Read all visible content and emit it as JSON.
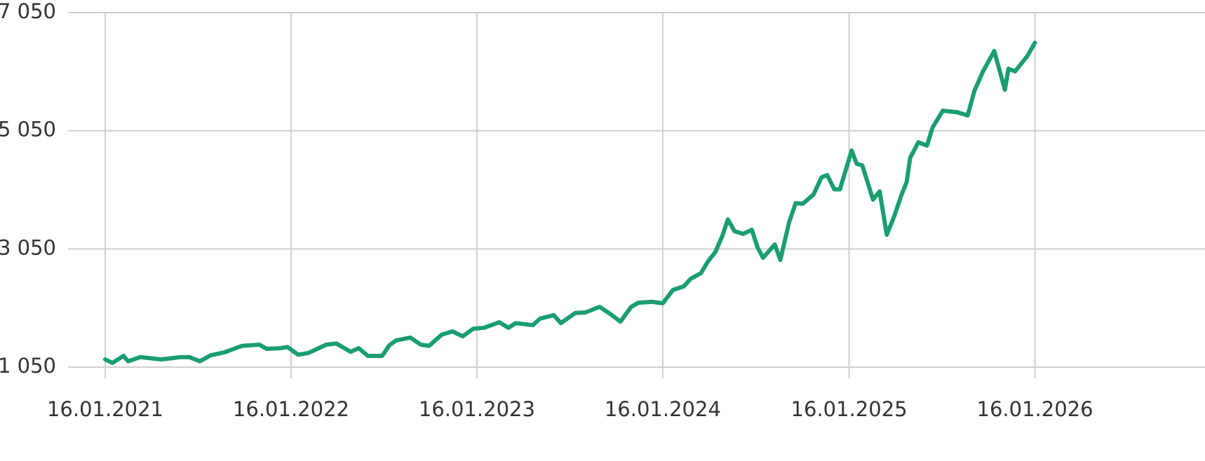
{
  "chart_data": {
    "type": "line",
    "x": [
      "2021-01-16",
      "2021-01-30",
      "2021-02-21",
      "2021-03-02",
      "2021-03-26",
      "2021-05-06",
      "2021-06-14",
      "2021-06-30",
      "2021-07-21",
      "2021-08-11",
      "2021-09-07",
      "2021-10-12",
      "2021-11-15",
      "2021-11-29",
      "2021-12-26",
      "2022-01-09",
      "2022-01-30",
      "2022-02-19",
      "2022-03-26",
      "2022-04-15",
      "2022-05-13",
      "2022-05-29",
      "2022-06-16",
      "2022-07-14",
      "2022-07-28",
      "2022-08-10",
      "2022-09-07",
      "2022-09-28",
      "2022-10-14",
      "2022-11-08",
      "2022-11-29",
      "2022-12-19",
      "2023-01-09",
      "2023-01-30",
      "2023-03-01",
      "2023-03-19",
      "2023-04-02",
      "2023-05-06",
      "2023-05-20",
      "2023-06-16",
      "2023-06-30",
      "2023-07-28",
      "2023-08-17",
      "2023-09-14",
      "2023-10-05",
      "2023-10-25",
      "2023-11-15",
      "2023-11-29",
      "2023-12-26",
      "2024-01-16",
      "2024-02-05",
      "2024-02-26",
      "2024-03-11",
      "2024-03-31",
      "2024-04-14",
      "2024-04-28",
      "2024-05-12",
      "2024-05-23",
      "2024-06-05",
      "2024-06-22",
      "2024-07-09",
      "2024-07-20",
      "2024-07-31",
      "2024-08-23",
      "2024-09-03",
      "2024-09-20",
      "2024-10-03",
      "2024-10-17",
      "2024-11-07",
      "2024-11-23",
      "2024-12-04",
      "2024-12-18",
      "2024-12-29",
      "2025-01-21",
      "2025-01-31",
      "2025-02-11",
      "2025-03-04",
      "2025-03-17",
      "2025-03-31",
      "2025-04-14",
      "2025-04-28",
      "2025-05-09",
      "2025-05-16",
      "2025-06-01",
      "2025-06-18",
      "2025-06-29",
      "2025-07-19",
      "2025-08-16",
      "2025-09-06",
      "2025-09-19",
      "2025-10-06",
      "2025-10-28",
      "2025-11-18",
      "2025-11-25",
      "2025-12-08",
      "2026-01-01",
      "2026-01-16"
    ],
    "series": [
      {
        "color": "#1a9e6e",
        "values": [
          1180,
          1120,
          1240,
          1150,
          1220,
          1180,
          1220,
          1220,
          1150,
          1250,
          1300,
          1410,
          1430,
          1360,
          1370,
          1390,
          1260,
          1290,
          1430,
          1450,
          1310,
          1370,
          1240,
          1240,
          1420,
          1500,
          1550,
          1430,
          1410,
          1600,
          1655,
          1570,
          1700,
          1715,
          1810,
          1715,
          1795,
          1760,
          1870,
          1930,
          1795,
          1965,
          1975,
          2070,
          1950,
          1820,
          2070,
          2140,
          2155,
          2130,
          2355,
          2415,
          2545,
          2640,
          2840,
          2995,
          3270,
          3550,
          3350,
          3305,
          3375,
          3080,
          2900,
          3125,
          2865,
          3495,
          3825,
          3815,
          3970,
          4265,
          4300,
          4060,
          4060,
          4715,
          4490,
          4465,
          3885,
          4025,
          3290,
          3590,
          3945,
          4180,
          4595,
          4855,
          4800,
          5105,
          5390,
          5365,
          5310,
          5725,
          6055,
          6400,
          5745,
          6100,
          6055,
          6315,
          6540
        ]
      }
    ],
    "xlim": [
      "2020-11-04",
      "2026-12-16"
    ],
    "xticks": [
      {
        "value": "2021-01-16",
        "label": "16.01.2021"
      },
      {
        "value": "2022-01-16",
        "label": "16.01.2022"
      },
      {
        "value": "2023-01-16",
        "label": "16.01.2023"
      },
      {
        "value": "2024-01-16",
        "label": "16.01.2024"
      },
      {
        "value": "2025-01-16",
        "label": "16.01.2025"
      },
      {
        "value": "2026-01-16",
        "label": "16.01.2026"
      }
    ],
    "ylim": [
      1050,
      7050
    ],
    "yticks": [
      {
        "value": 1050,
        "label": "1 050"
      },
      {
        "value": 3050,
        "label": "3 050"
      },
      {
        "value": 5050,
        "label": "5 050"
      },
      {
        "value": 7050,
        "label": "7 050"
      }
    ],
    "grid": true
  }
}
